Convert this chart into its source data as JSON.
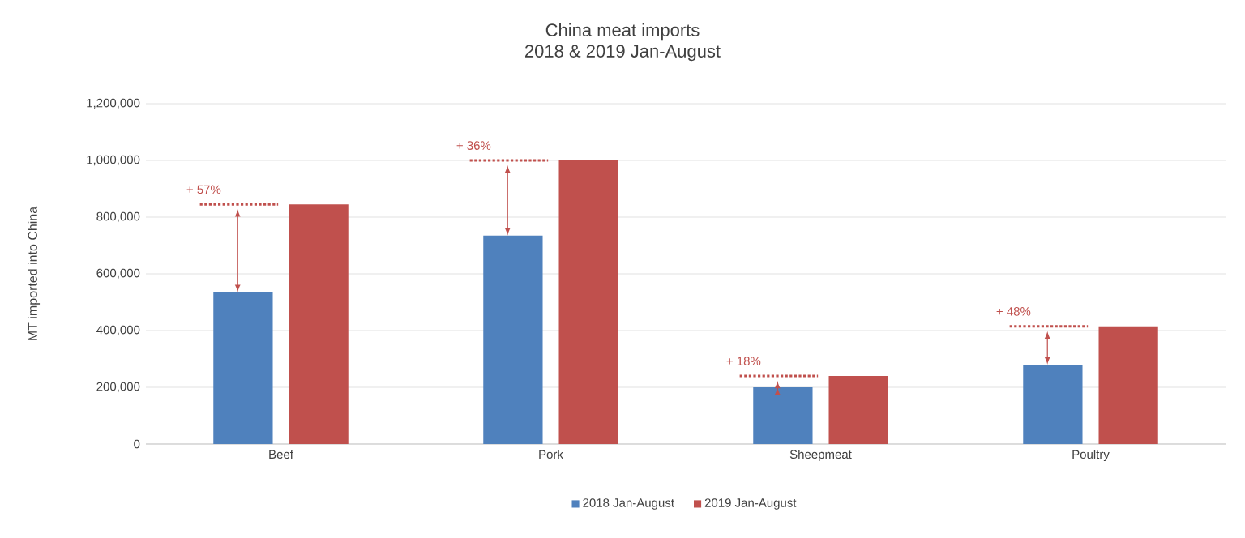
{
  "chart_data": {
    "type": "bar",
    "title": "China meat imports\n2018 & 2019 Jan-August",
    "ylabel": "MT imported into China",
    "categories": [
      "Beef",
      "Pork",
      "Sheepmeat",
      "Poultry"
    ],
    "series": [
      {
        "name": "2018 Jan-August",
        "color": "#4f81bd",
        "values": [
          535000,
          735000,
          200000,
          280000
        ]
      },
      {
        "name": "2019 Jan-August",
        "color": "#c0504d",
        "values": [
          845000,
          1000000,
          240000,
          415000
        ]
      }
    ],
    "ylim": [
      0,
      1200000
    ],
    "yticks": [
      0,
      {
        "value": 200000,
        "label": "200,000"
      },
      {
        "value": 400000,
        "label": "400,000"
      },
      {
        "value": 600000,
        "label": "600,000"
      },
      {
        "value": 800000,
        "label": "800,000"
      },
      {
        "value": 1000000,
        "label": "1,000,000"
      },
      {
        "value": 1200000,
        "label": "1,200,000"
      }
    ],
    "grid": "y",
    "legend": "bottom",
    "annotations": [
      {
        "text": "+ 57%",
        "x": "Beef",
        "y": 845000
      },
      {
        "text": "+ 36%",
        "x": "Pork",
        "y": 1000000
      },
      {
        "text": "+ 18%",
        "x": "Sheepmeat",
        "y": 240000
      },
      {
        "text": "+ 48%",
        "x": "Poultry",
        "y": 415000
      }
    ]
  }
}
